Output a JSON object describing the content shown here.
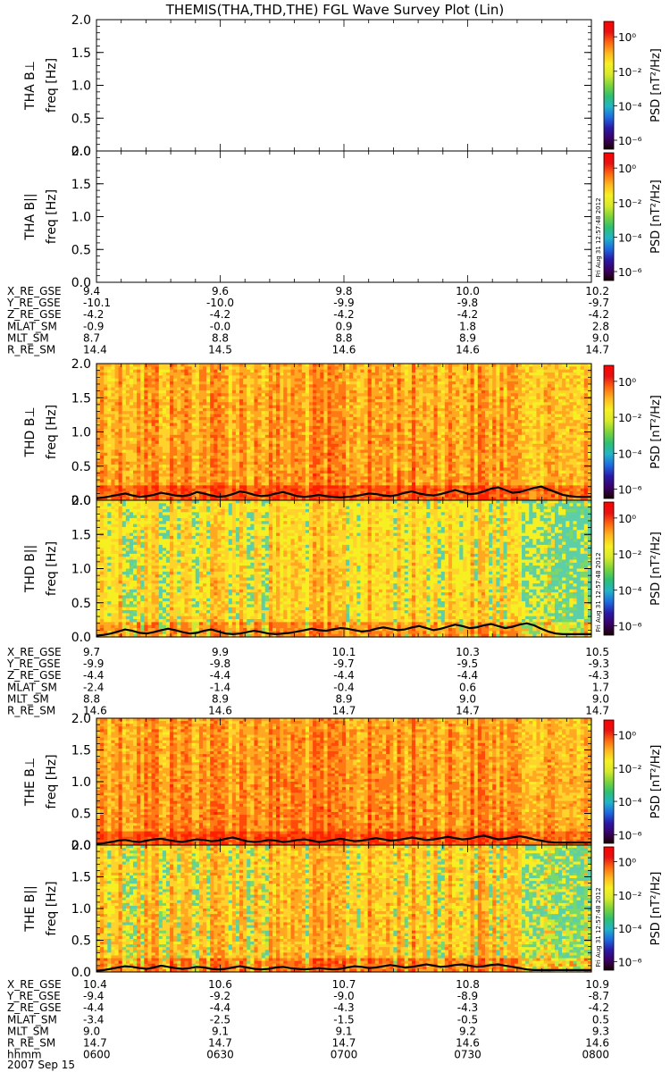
{
  "title": "THEMIS(THA,THD,THE) FGL Wave Survey Plot (Lin)",
  "colors": {
    "colorbar": [
      "#1a0000",
      "#3a0066",
      "#2a1aa8",
      "#1e6be0",
      "#22b4c8",
      "#2ec070",
      "#7cd43a",
      "#d7ea2a",
      "#f6f022",
      "#ffb820",
      "#ff6a10",
      "#e81212",
      "#ff0000"
    ],
    "spectrogram_low": [
      "#ff2000",
      "#ff4a0a",
      "#ff7a14",
      "#ffa820",
      "#ffd22c",
      "#f6f022"
    ],
    "spectrogram_high": [
      "#ff5a10",
      "#ff8c18",
      "#ffbe24",
      "#f6f022",
      "#c4ec3a",
      "#7ad86a",
      "#5ccfa8"
    ],
    "trace": "#000000"
  },
  "chart_data": [
    {
      "type": "heatmap",
      "probe": "THA",
      "panel": "Bperp",
      "ylabel": "THA B⊥",
      "yunit": "freq [Hz]",
      "ylim": [
        0,
        2.0
      ],
      "yticks": [
        "2.0",
        "1.5",
        "1.0",
        "0.5",
        "0.0"
      ],
      "has_data": false,
      "colorbar_label": "PSD [nT²/Hz]",
      "colorbar_ticks": [
        "10⁰",
        "10⁻²",
        "10⁻⁴",
        "10⁻⁶"
      ]
    },
    {
      "type": "heatmap",
      "probe": "THA",
      "panel": "Bpar",
      "ylabel": "THA B||",
      "yunit": "freq [Hz]",
      "ylim": [
        0,
        2.0
      ],
      "yticks": [
        "2.0",
        "1.5",
        "1.0",
        "0.5",
        "0.0"
      ],
      "has_data": false,
      "colorbar_label": "PSD [nT²/Hz]",
      "colorbar_ticks": [
        "10⁰",
        "10⁻²",
        "10⁻⁴",
        "10⁻⁶"
      ],
      "stamp": "Fri Aug 31 12:57:48 2012"
    },
    {
      "type": "heatmap",
      "probe": "THD",
      "panel": "Bperp",
      "ylabel": "THD B⊥",
      "yunit": "freq [Hz]",
      "ylim": [
        0,
        2.0
      ],
      "yticks": [
        "2.0",
        "1.5",
        "1.0",
        "0.5",
        "0.0"
      ],
      "has_data": true,
      "intensity": 0.3,
      "colorbar_label": "PSD [nT²/Hz]",
      "colorbar_ticks": [
        "10⁰",
        "10⁻²",
        "10⁻⁴",
        "10⁻⁶"
      ],
      "trace_hz": [
        0.03,
        0.04,
        0.06,
        0.08,
        0.1,
        0.07,
        0.05,
        0.06,
        0.08,
        0.11,
        0.09,
        0.07,
        0.06,
        0.08,
        0.12,
        0.1,
        0.07,
        0.05,
        0.06,
        0.09,
        0.13,
        0.11,
        0.08,
        0.06,
        0.07,
        0.1,
        0.12,
        0.09,
        0.06,
        0.05,
        0.06,
        0.08,
        0.06,
        0.05,
        0.04,
        0.05,
        0.06,
        0.08,
        0.1,
        0.09,
        0.07,
        0.06,
        0.08,
        0.11,
        0.13,
        0.1,
        0.08,
        0.07,
        0.09,
        0.12,
        0.15,
        0.12,
        0.09,
        0.1,
        0.13,
        0.17,
        0.19,
        0.15,
        0.11,
        0.12,
        0.15,
        0.18,
        0.2,
        0.16,
        0.12,
        0.08,
        0.06,
        0.05,
        0.05,
        0.05
      ]
    },
    {
      "type": "heatmap",
      "probe": "THD",
      "panel": "Bpar",
      "ylabel": "THD B||",
      "yunit": "freq [Hz]",
      "ylim": [
        0,
        2.0
      ],
      "yticks": [
        "2.0",
        "1.5",
        "1.0",
        "0.5",
        "0.0"
      ],
      "has_data": true,
      "intensity": 0.55,
      "colorbar_label": "PSD [nT²/Hz]",
      "colorbar_ticks": [
        "10⁰",
        "10⁻²",
        "10⁻⁴",
        "10⁻⁶"
      ],
      "stamp": "Fri Aug 31 12:57:48 2012",
      "trace_hz": [
        0.02,
        0.03,
        0.05,
        0.08,
        0.11,
        0.09,
        0.06,
        0.05,
        0.07,
        0.1,
        0.12,
        0.1,
        0.07,
        0.05,
        0.06,
        0.09,
        0.11,
        0.08,
        0.05,
        0.04,
        0.05,
        0.07,
        0.09,
        0.07,
        0.05,
        0.04,
        0.05,
        0.06,
        0.08,
        0.1,
        0.12,
        0.1,
        0.09,
        0.11,
        0.13,
        0.12,
        0.1,
        0.08,
        0.09,
        0.12,
        0.14,
        0.12,
        0.1,
        0.11,
        0.14,
        0.16,
        0.13,
        0.1,
        0.12,
        0.15,
        0.18,
        0.16,
        0.13,
        0.14,
        0.17,
        0.19,
        0.16,
        0.13,
        0.15,
        0.18,
        0.2,
        0.17,
        0.12,
        0.08,
        0.05,
        0.04,
        0.04,
        0.04,
        0.04,
        0.04
      ]
    },
    {
      "type": "heatmap",
      "probe": "THE",
      "panel": "Bperp",
      "ylabel": "THE B⊥",
      "yunit": "freq [Hz]",
      "ylim": [
        0,
        2.0
      ],
      "yticks": [
        "2.0",
        "1.5",
        "1.0",
        "0.5",
        "0.0"
      ],
      "has_data": true,
      "intensity": 0.25,
      "colorbar_label": "PSD [nT²/Hz]",
      "colorbar_ticks": [
        "10⁰",
        "10⁻²",
        "10⁻⁴",
        "10⁻⁶"
      ],
      "trace_hz": [
        0.02,
        0.03,
        0.05,
        0.07,
        0.08,
        0.06,
        0.05,
        0.07,
        0.09,
        0.1,
        0.08,
        0.06,
        0.05,
        0.07,
        0.09,
        0.08,
        0.06,
        0.07,
        0.1,
        0.12,
        0.09,
        0.06,
        0.05,
        0.06,
        0.08,
        0.07,
        0.05,
        0.06,
        0.08,
        0.09,
        0.07,
        0.05,
        0.06,
        0.08,
        0.1,
        0.08,
        0.06,
        0.07,
        0.09,
        0.11,
        0.09,
        0.07,
        0.08,
        0.1,
        0.12,
        0.1,
        0.08,
        0.09,
        0.11,
        0.13,
        0.11,
        0.09,
        0.1,
        0.13,
        0.15,
        0.12,
        0.09,
        0.1,
        0.12,
        0.14,
        0.12,
        0.09,
        0.07,
        0.05,
        0.04,
        0.04,
        0.04,
        0.04,
        0.04,
        0.04
      ]
    },
    {
      "type": "heatmap",
      "probe": "THE",
      "panel": "Bpar",
      "ylabel": "THE B||",
      "yunit": "freq [Hz]",
      "ylim": [
        0,
        2.0
      ],
      "yticks": [
        "2.0",
        "1.5",
        "1.0",
        "0.5",
        "0.0"
      ],
      "has_data": true,
      "intensity": 0.45,
      "colorbar_label": "PSD [nT²/Hz]",
      "colorbar_ticks": [
        "10⁰",
        "10⁻²",
        "10⁻⁴",
        "10⁻⁶"
      ],
      "stamp": "Fri Aug 31 12:57:48 2012",
      "trace_hz": [
        0.02,
        0.03,
        0.05,
        0.07,
        0.09,
        0.08,
        0.06,
        0.05,
        0.07,
        0.1,
        0.08,
        0.06,
        0.05,
        0.06,
        0.08,
        0.07,
        0.05,
        0.04,
        0.05,
        0.07,
        0.09,
        0.07,
        0.05,
        0.04,
        0.05,
        0.07,
        0.08,
        0.06,
        0.05,
        0.04,
        0.05,
        0.06,
        0.05,
        0.04,
        0.05,
        0.07,
        0.09,
        0.08,
        0.06,
        0.07,
        0.09,
        0.11,
        0.09,
        0.07,
        0.08,
        0.1,
        0.12,
        0.1,
        0.08,
        0.09,
        0.11,
        0.12,
        0.1,
        0.08,
        0.09,
        0.11,
        0.12,
        0.1,
        0.08,
        0.06,
        0.04,
        0.03,
        0.03,
        0.03,
        0.03,
        0.03,
        0.03,
        0.03,
        0.03,
        0.03
      ]
    }
  ],
  "ephemeris": [
    {
      "probe": "THA",
      "rows": [
        {
          "label": "X_RE_GSE",
          "values": [
            "9.4",
            "9.6",
            "9.8",
            "10.0",
            "10.2"
          ]
        },
        {
          "label": "Y_RE_GSE",
          "values": [
            "-10.1",
            "-10.0",
            "-9.9",
            "-9.8",
            "-9.7"
          ]
        },
        {
          "label": "Z_RE_GSE",
          "values": [
            "-4.2",
            "-4.2",
            "-4.2",
            "-4.2",
            "-4.2"
          ]
        },
        {
          "label": "MLAT_SM",
          "values": [
            "-0.9",
            "-0.0",
            "0.9",
            "1.8",
            "2.8"
          ]
        },
        {
          "label": "MLT_SM",
          "values": [
            "8.7",
            "8.8",
            "8.8",
            "8.9",
            "9.0"
          ]
        },
        {
          "label": "R_RE_SM",
          "values": [
            "14.4",
            "14.5",
            "14.6",
            "14.6",
            "14.7"
          ]
        }
      ]
    },
    {
      "probe": "THD",
      "rows": [
        {
          "label": "X_RE_GSE",
          "values": [
            "9.7",
            "9.9",
            "10.1",
            "10.3",
            "10.5"
          ]
        },
        {
          "label": "Y_RE_GSE",
          "values": [
            "-9.9",
            "-9.8",
            "-9.7",
            "-9.5",
            "-9.3"
          ]
        },
        {
          "label": "Z_RE_GSE",
          "values": [
            "-4.4",
            "-4.4",
            "-4.4",
            "-4.4",
            "-4.3"
          ]
        },
        {
          "label": "MLAT_SM",
          "values": [
            "-2.4",
            "-1.4",
            "-0.4",
            "0.6",
            "1.7"
          ]
        },
        {
          "label": "MLT_SM",
          "values": [
            "8.8",
            "8.9",
            "8.9",
            "9.0",
            "9.0"
          ]
        },
        {
          "label": "R_RE_SM",
          "values": [
            "14.6",
            "14.6",
            "14.7",
            "14.7",
            "14.7"
          ]
        }
      ]
    },
    {
      "probe": "THE",
      "rows": [
        {
          "label": "X_RE_GSE",
          "values": [
            "10.4",
            "10.6",
            "10.7",
            "10.8",
            "10.9"
          ]
        },
        {
          "label": "Y_RE_GSE",
          "values": [
            "-9.4",
            "-9.2",
            "-9.0",
            "-8.9",
            "-8.7"
          ]
        },
        {
          "label": "Z_RE_GSE",
          "values": [
            "-4.4",
            "-4.4",
            "-4.3",
            "-4.3",
            "-4.2"
          ]
        },
        {
          "label": "MLAT_SM",
          "values": [
            "-3.4",
            "-2.5",
            "-1.5",
            "-0.5",
            "0.5"
          ]
        },
        {
          "label": "MLT_SM",
          "values": [
            "9.0",
            "9.1",
            "9.1",
            "9.2",
            "9.3"
          ]
        },
        {
          "label": "R_RE_SM",
          "values": [
            "14.7",
            "14.7",
            "14.7",
            "14.6",
            "14.6"
          ]
        },
        {
          "label": "hhmm",
          "values": [
            "0600",
            "0630",
            "0700",
            "0730",
            "0800"
          ]
        }
      ]
    }
  ],
  "date_label": "2007 Sep 15"
}
